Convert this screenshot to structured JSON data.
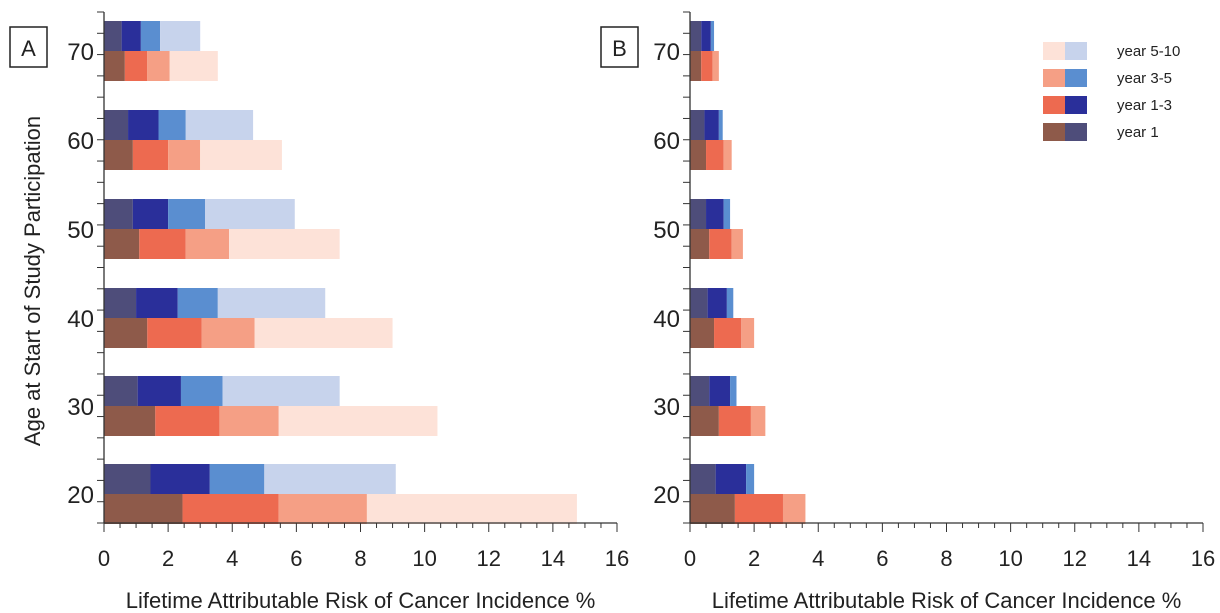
{
  "chart_data": [
    {
      "type": "bar",
      "orientation": "horizontal",
      "stacked": true,
      "panel_label": "A",
      "ylabel": "Age at Start of Study Participation",
      "xlabel": "Lifetime Attributable Risk of Cancer  Incidence %",
      "categories": [
        "70",
        "60",
        "50",
        "40",
        "30",
        "20"
      ],
      "xlim": [
        0,
        16
      ],
      "xticks": [
        "0",
        "2",
        "4",
        "6",
        "8",
        "10",
        "12",
        "14",
        "16"
      ],
      "series": [
        {
          "name": "year 1",
          "group": "upper",
          "color": "#4e4d7a",
          "values": [
            0.55,
            0.75,
            0.9,
            1.0,
            1.05,
            1.45
          ]
        },
        {
          "name": "year 1-3",
          "group": "upper",
          "color": "#2a2f9a",
          "values": [
            0.6,
            0.95,
            1.1,
            1.3,
            1.35,
            1.85
          ]
        },
        {
          "name": "year 3-5",
          "group": "upper",
          "color": "#5a8ed0",
          "values": [
            0.6,
            0.85,
            1.15,
            1.25,
            1.3,
            1.7
          ]
        },
        {
          "name": "year 5-10",
          "group": "upper",
          "color": "#c7d3ec",
          "values": [
            1.25,
            2.1,
            2.8,
            3.35,
            3.65,
            4.1
          ]
        },
        {
          "name": "year 1",
          "group": "lower",
          "color": "#8e5a4a",
          "values": [
            0.65,
            0.9,
            1.1,
            1.35,
            1.6,
            2.45
          ]
        },
        {
          "name": "year 1-3",
          "group": "lower",
          "color": "#ed6a50",
          "values": [
            0.7,
            1.1,
            1.45,
            1.7,
            2.0,
            3.0
          ]
        },
        {
          "name": "year 3-5",
          "group": "lower",
          "color": "#f59f85",
          "values": [
            0.7,
            1.0,
            1.35,
            1.65,
            1.85,
            2.75
          ]
        },
        {
          "name": "year 5-10",
          "group": "lower",
          "color": "#fde2d8",
          "values": [
            1.5,
            2.55,
            3.45,
            4.3,
            4.95,
            6.55
          ]
        }
      ]
    },
    {
      "type": "bar",
      "orientation": "horizontal",
      "stacked": true,
      "panel_label": "B",
      "xlabel": "Lifetime Attributable Risk of Cancer  Incidence %",
      "categories": [
        "70",
        "60",
        "50",
        "40",
        "30",
        "20"
      ],
      "xlim": [
        0,
        16
      ],
      "xticks": [
        "0",
        "2",
        "4",
        "6",
        "8",
        "10",
        "12",
        "14",
        "16"
      ],
      "series": [
        {
          "name": "year 1",
          "group": "upper",
          "color": "#4e4d7a",
          "values": [
            0.35,
            0.45,
            0.5,
            0.55,
            0.6,
            0.8
          ]
        },
        {
          "name": "year 1-3",
          "group": "upper",
          "color": "#2a2f9a",
          "values": [
            0.3,
            0.45,
            0.55,
            0.6,
            0.65,
            0.95
          ]
        },
        {
          "name": "year 3-5",
          "group": "upper",
          "color": "#5a8ed0",
          "values": [
            0.1,
            0.12,
            0.2,
            0.2,
            0.2,
            0.25
          ]
        },
        {
          "name": "year 1",
          "group": "lower",
          "color": "#8e5a4a",
          "values": [
            0.35,
            0.5,
            0.6,
            0.75,
            0.9,
            1.4
          ]
        },
        {
          "name": "year 1-3",
          "group": "lower",
          "color": "#ed6a50",
          "values": [
            0.35,
            0.55,
            0.7,
            0.85,
            1.0,
            1.5
          ]
        },
        {
          "name": "year 3-5",
          "group": "lower",
          "color": "#f59f85",
          "values": [
            0.2,
            0.25,
            0.35,
            0.4,
            0.45,
            0.7
          ]
        }
      ]
    }
  ],
  "legend": {
    "position": "top-right",
    "entries": [
      {
        "label": "year 5-10",
        "colors": [
          "#fde2d8",
          "#c7d3ec"
        ]
      },
      {
        "label": "year 3-5",
        "colors": [
          "#f59f85",
          "#5a8ed0"
        ]
      },
      {
        "label": "year 1-3",
        "colors": [
          "#ed6a50",
          "#2a2f9a"
        ]
      },
      {
        "label": "year 1",
        "colors": [
          "#8e5a4a",
          "#4e4d7a"
        ]
      }
    ]
  }
}
